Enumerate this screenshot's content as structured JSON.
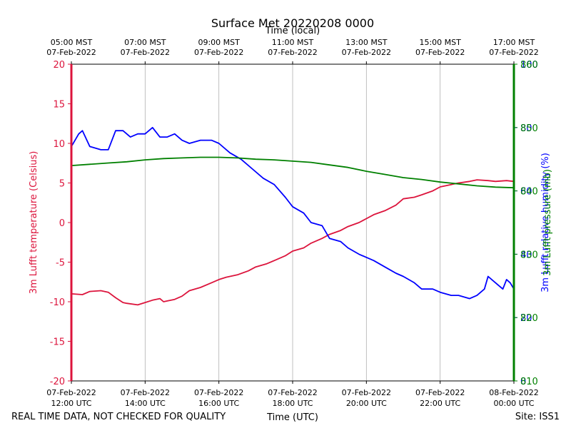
{
  "chart_data": {
    "type": "line",
    "title": "Surface Met 20220208 0000",
    "top_axis_label": "Time (local)",
    "xlabel": "Time (UTC)",
    "footer_left": "REAL TIME DATA, NOT CHECKED FOR QUALITY",
    "footer_right": "Site: ISS1",
    "x_hours_utc": [
      12,
      24
    ],
    "bottom_ticks": [
      {
        "hour": 12,
        "line1": "07-Feb-2022",
        "line2": "12:00 UTC"
      },
      {
        "hour": 14,
        "line1": "07-Feb-2022",
        "line2": "14:00 UTC"
      },
      {
        "hour": 16,
        "line1": "07-Feb-2022",
        "line2": "16:00 UTC"
      },
      {
        "hour": 18,
        "line1": "07-Feb-2022",
        "line2": "18:00 UTC"
      },
      {
        "hour": 20,
        "line1": "07-Feb-2022",
        "line2": "20:00 UTC"
      },
      {
        "hour": 22,
        "line1": "07-Feb-2022",
        "line2": "22:00 UTC"
      },
      {
        "hour": 24,
        "line1": "08-Feb-2022",
        "line2": "00:00 UTC"
      }
    ],
    "top_ticks": [
      {
        "hour": 12,
        "line1": "05:00 MST",
        "line2": "07-Feb-2022"
      },
      {
        "hour": 14,
        "line1": "07:00 MST",
        "line2": "07-Feb-2022"
      },
      {
        "hour": 16,
        "line1": "09:00 MST",
        "line2": "07-Feb-2022"
      },
      {
        "hour": 18,
        "line1": "11:00 MST",
        "line2": "07-Feb-2022"
      },
      {
        "hour": 20,
        "line1": "13:00 MST",
        "line2": "07-Feb-2022"
      },
      {
        "hour": 22,
        "line1": "15:00 MST",
        "line2": "07-Feb-2022"
      },
      {
        "hour": 24,
        "line1": "17:00 MST",
        "line2": "07-Feb-2022"
      }
    ],
    "left_axis": {
      "label": "3m Lufft temperature (Celsius)",
      "ylim": [
        -20,
        20
      ],
      "ticks": [
        "-20",
        "-15",
        "-10",
        "-5",
        "0",
        "5",
        "10",
        "15",
        "20"
      ],
      "color": "#dc143c"
    },
    "right_axes": [
      {
        "label": "3m Lufft relative humidity (%)",
        "ylim": [
          0,
          100
        ],
        "ticks": [
          "0",
          "20",
          "40",
          "60",
          "80",
          "100"
        ],
        "color": "#0000ff"
      },
      {
        "label": "3m Lufft pressure (mb)",
        "ylim": [
          810,
          860
        ],
        "ticks": [
          "810",
          "820",
          "830",
          "840",
          "850",
          "860"
        ],
        "color": "#008000"
      }
    ],
    "series": [
      {
        "name": "3m Lufft temperature (Celsius)",
        "axis": "left",
        "color": "#dc143c",
        "x": [
          12.0,
          12.3,
          12.5,
          12.8,
          13.0,
          13.2,
          13.4,
          13.5,
          13.8,
          14.0,
          14.2,
          14.4,
          14.5,
          14.6,
          14.8,
          15.0,
          15.2,
          15.5,
          15.8,
          16.0,
          16.2,
          16.5,
          16.8,
          17.0,
          17.3,
          17.5,
          17.8,
          18.0,
          18.3,
          18.5,
          18.8,
          19.0,
          19.3,
          19.5,
          19.8,
          20.0,
          20.2,
          20.5,
          20.8,
          21.0,
          21.3,
          21.5,
          21.8,
          22.0,
          22.3,
          22.5,
          22.8,
          23.0,
          23.3,
          23.5,
          23.8,
          24.0
        ],
        "values": [
          -9.0,
          -9.1,
          -8.7,
          -8.6,
          -8.8,
          -9.5,
          -10.1,
          -10.2,
          -10.4,
          -10.1,
          -9.8,
          -9.6,
          -10.0,
          -9.9,
          -9.7,
          -9.3,
          -8.6,
          -8.2,
          -7.6,
          -7.2,
          -6.9,
          -6.6,
          -6.1,
          -5.6,
          -5.2,
          -4.8,
          -4.2,
          -3.6,
          -3.2,
          -2.6,
          -2.0,
          -1.5,
          -1.0,
          -0.5,
          0.0,
          0.5,
          1.0,
          1.5,
          2.2,
          3.0,
          3.2,
          3.5,
          4.0,
          4.5,
          4.8,
          5.0,
          5.2,
          5.4,
          5.3,
          5.2,
          5.3,
          5.2
        ]
      },
      {
        "name": "3m Lufft relative humidity (%)",
        "axis": "right",
        "color": "#0000ff",
        "x": [
          12.0,
          12.2,
          12.3,
          12.5,
          12.8,
          13.0,
          13.2,
          13.4,
          13.6,
          13.8,
          14.0,
          14.2,
          14.4,
          14.6,
          14.8,
          15.0,
          15.2,
          15.5,
          15.8,
          16.0,
          16.3,
          16.6,
          16.9,
          17.2,
          17.5,
          17.8,
          18.0,
          18.3,
          18.5,
          18.8,
          19.0,
          19.3,
          19.5,
          19.8,
          20.0,
          20.2,
          20.5,
          20.8,
          21.0,
          21.3,
          21.5,
          21.8,
          22.0,
          22.3,
          22.5,
          22.8,
          23.0,
          23.2,
          23.3,
          23.5,
          23.7,
          23.8,
          23.9,
          24.0
        ],
        "values": [
          74,
          78,
          79,
          74,
          73,
          73,
          79,
          79,
          77,
          78,
          78,
          80,
          77,
          77,
          78,
          76,
          75,
          76,
          76,
          75,
          72,
          70,
          67,
          64,
          62,
          58,
          55,
          53,
          50,
          49,
          45,
          44,
          42,
          40,
          39,
          38,
          36,
          34,
          33,
          31,
          29,
          29,
          28,
          27,
          27,
          26,
          27,
          29,
          33,
          31,
          29,
          32,
          31,
          29
        ]
      },
      {
        "name": "3m Lufft pressure (mb)",
        "axis": "right",
        "color": "#008000",
        "x": [
          12,
          12.5,
          13,
          13.5,
          14,
          14.5,
          15,
          15.5,
          16,
          16.5,
          17,
          17.5,
          18,
          18.5,
          19,
          19.5,
          20,
          20.5,
          21,
          21.5,
          22,
          22.5,
          23,
          23.5,
          24
        ],
        "values": [
          844.0,
          844.2,
          844.4,
          844.6,
          844.9,
          845.1,
          845.2,
          845.3,
          845.3,
          845.2,
          845.0,
          844.9,
          844.7,
          844.5,
          844.1,
          843.7,
          843.1,
          842.6,
          842.1,
          841.8,
          841.4,
          841.1,
          840.8,
          840.6,
          840.5
        ]
      }
    ]
  }
}
